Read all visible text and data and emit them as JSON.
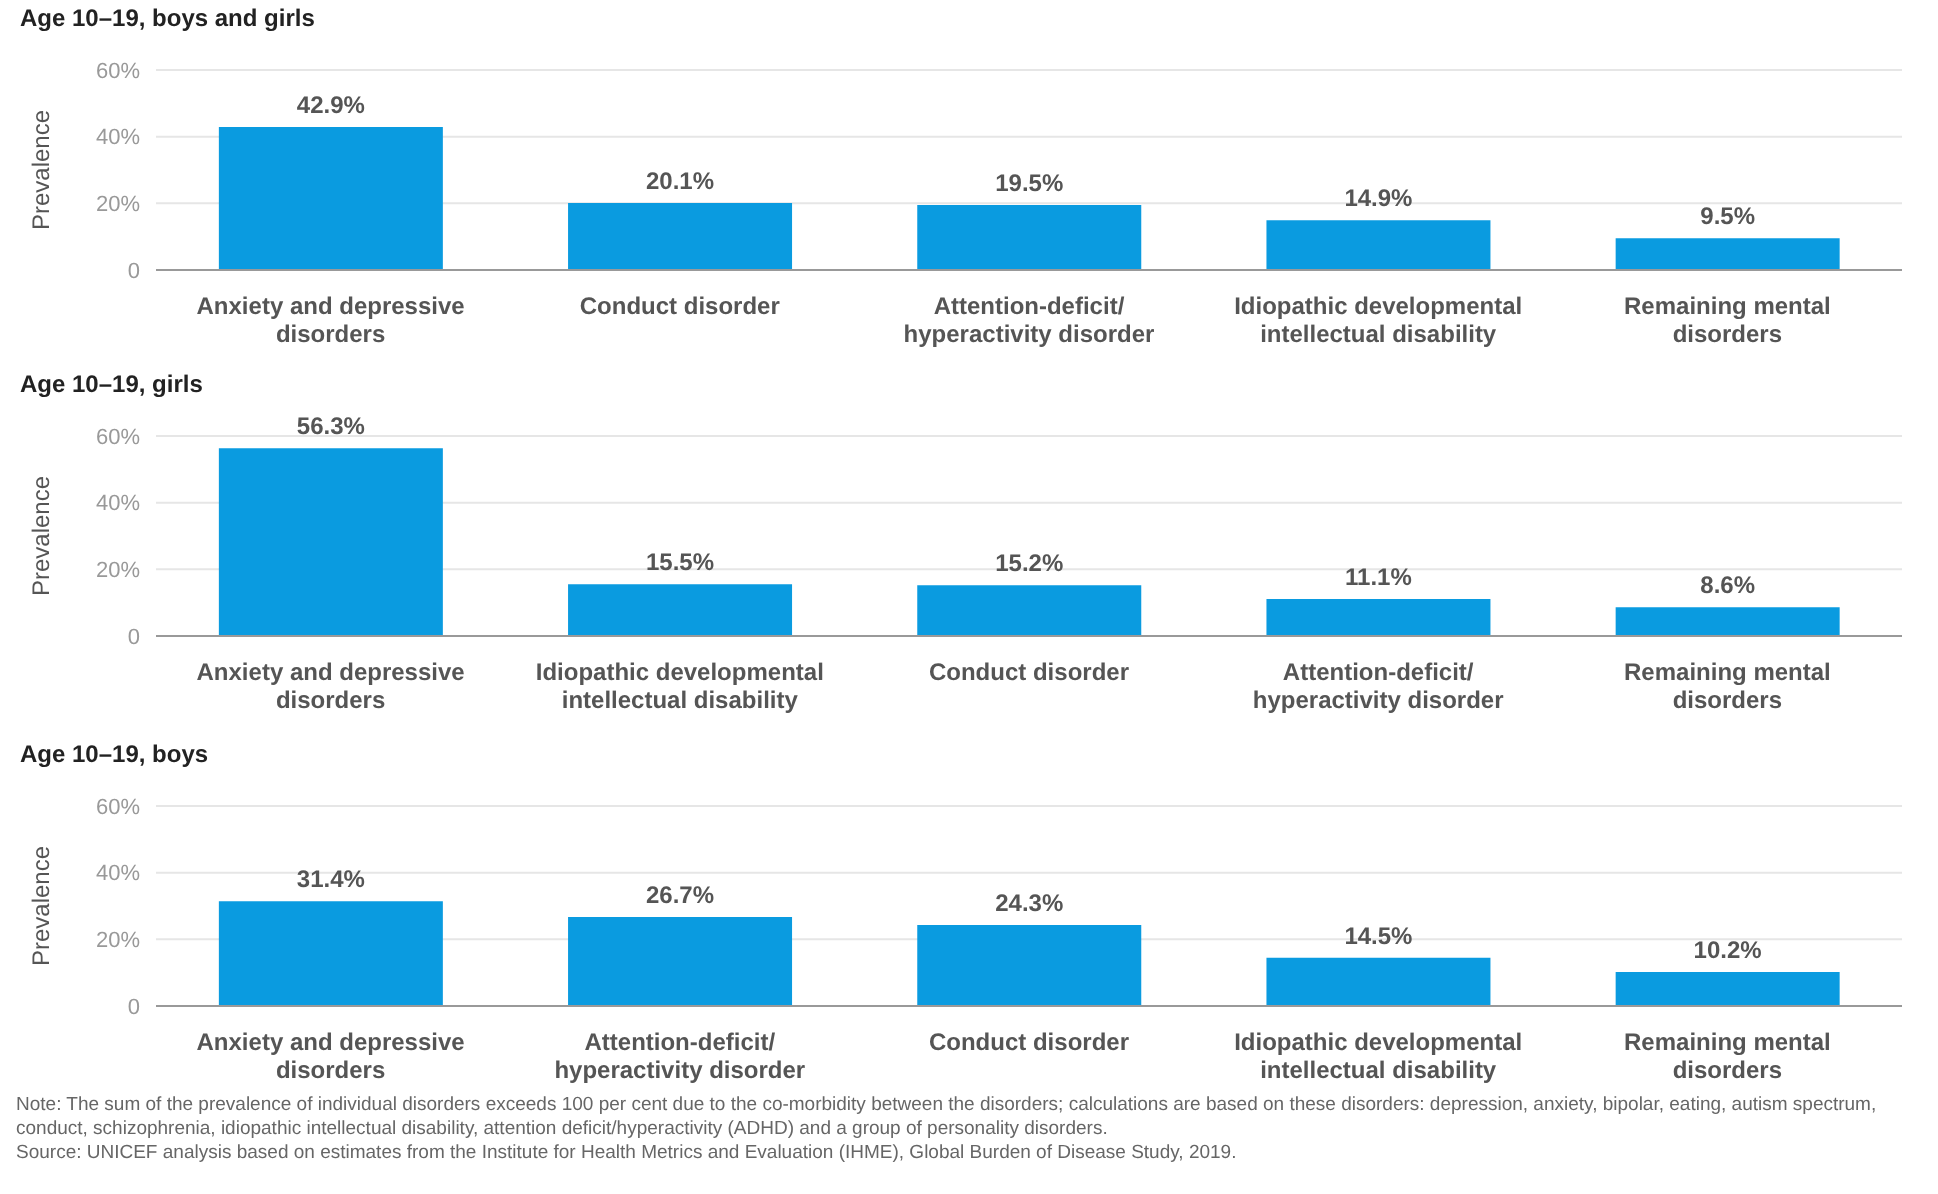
{
  "chart_data": [
    {
      "type": "bar",
      "title": "Age 10–19, boys and girls",
      "ylabel": "Prevalence",
      "categories": [
        "Anxiety and depressive disorders",
        "Conduct disorder",
        "Attention-deficit/ hyperactivity disorder",
        "Idiopathic developmental intellectual disability",
        "Remaining mental disorders"
      ],
      "values": [
        42.9,
        20.1,
        19.5,
        14.9,
        9.5
      ],
      "value_labels": [
        "42.9%",
        "20.1%",
        "19.5%",
        "14.9%",
        "9.5%"
      ],
      "color": "#0a9be0",
      "ylim": [
        0,
        60
      ],
      "yticks": [
        {
          "value": 0,
          "label": "0"
        },
        {
          "value": 20,
          "label": "20%"
        },
        {
          "value": 40,
          "label": "40%"
        },
        {
          "value": 60,
          "label": "60%"
        }
      ],
      "grid": "y"
    },
    {
      "type": "bar",
      "title": "Age 10–19, girls",
      "ylabel": "Prevalence",
      "categories": [
        "Anxiety and depressive disorders",
        "Idiopathic developmental intellectual disability",
        "Conduct disorder",
        "Attention-deficit/ hyperactivity disorder",
        "Remaining mental disorders"
      ],
      "values": [
        56.3,
        15.5,
        15.2,
        11.1,
        8.6
      ],
      "value_labels": [
        "56.3%",
        "15.5%",
        "15.2%",
        "11.1%",
        "8.6%"
      ],
      "color": "#0a9be0",
      "ylim": [
        0,
        60
      ],
      "yticks": [
        {
          "value": 0,
          "label": "0"
        },
        {
          "value": 20,
          "label": "20%"
        },
        {
          "value": 40,
          "label": "40%"
        },
        {
          "value": 60,
          "label": "60%"
        }
      ],
      "grid": "y"
    },
    {
      "type": "bar",
      "title": "Age 10–19, boys",
      "ylabel": "Prevalence",
      "categories": [
        "Anxiety and depressive disorders",
        "Attention-deficit/ hyperactivity disorder",
        "Conduct disorder",
        "Idiopathic developmental intellectual disability",
        "Remaining mental disorders"
      ],
      "values": [
        31.4,
        26.7,
        24.3,
        14.5,
        10.2
      ],
      "value_labels": [
        "31.4%",
        "26.7%",
        "24.3%",
        "14.5%",
        "10.2%"
      ],
      "color": "#0a9be0",
      "ylim": [
        0,
        60
      ],
      "yticks": [
        {
          "value": 0,
          "label": "0"
        },
        {
          "value": 20,
          "label": "20%"
        },
        {
          "value": 40,
          "label": "40%"
        },
        {
          "value": 60,
          "label": "60%"
        }
      ],
      "grid": "y",
      "annotations": [
        "Note: The sum of the prevalence of individual disorders exceeds 100 per cent due to the co-morbidity between the disorders; calculations are based on these disorders: depression, anxiety, bipolar, eating, autism spectrum, conduct, schizophrenia, idiopathic intellectual disability, attention deficit/hyperactivity (ADHD) and a group of personality disorders.",
        "Source: UNICEF analysis based on estimates from the Institute for Health Metrics and Evaluation (IHME), Global Burden of Disease Study, 2019."
      ]
    }
  ]
}
